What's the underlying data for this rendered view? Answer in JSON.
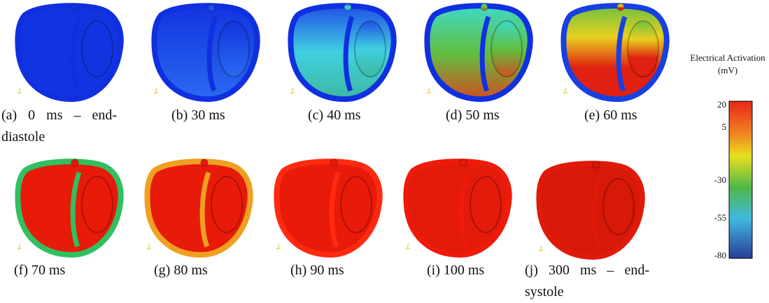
{
  "captions": [
    "(a) 0 ms – end-diastole",
    "(b) 30 ms",
    "(c) 40 ms",
    "(d) 50 ms",
    "(e) 60 ms",
    "(f) 70 ms",
    "(g) 80 ms",
    "(h) 90 ms",
    "(i) 100 ms",
    "(j) 300 ms – end-systole"
  ],
  "colorbar": {
    "title": "Electrical Activation (mV)",
    "ticks": [
      20,
      5,
      -30,
      -55,
      -80
    ]
  }
}
